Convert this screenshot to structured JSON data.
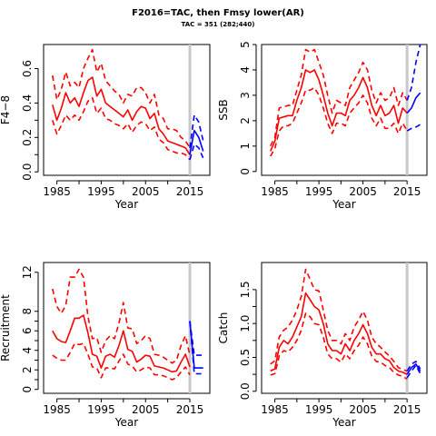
{
  "title": "F2016=TAC, then Fmsy lower(AR)",
  "subtitle": "TAC = 351 (282;440)",
  "colors": {
    "history": "#ff0000",
    "forecast": "#0000ff",
    "divider": "#c8c8c8",
    "axis": "#000000"
  },
  "chart_data": [
    {
      "type": "line",
      "name": "fbar",
      "ylabel": "F̄4−8",
      "xlabel": "Year",
      "xlim": [
        1982,
        2019.5
      ],
      "ylim": [
        -0.02,
        0.74
      ],
      "xticks": [
        1985,
        1995,
        2005,
        2015
      ],
      "yticks": [
        0.0,
        0.2,
        0.4,
        0.6
      ],
      "ytick_labels": [
        "0.0",
        "0.2",
        "0.4",
        "0.6"
      ],
      "divider_x": 2015,
      "history": {
        "x": [
          1984,
          1985,
          1986,
          1987,
          1988,
          1989,
          1990,
          1991,
          1992,
          1993,
          1994,
          1995,
          1996,
          1997,
          1998,
          1999,
          2000,
          2001,
          2002,
          2003,
          2004,
          2005,
          2006,
          2007,
          2008,
          2009,
          2010,
          2011,
          2012,
          2013,
          2014,
          2015
        ],
        "mid": [
          0.39,
          0.3,
          0.37,
          0.46,
          0.4,
          0.43,
          0.38,
          0.46,
          0.53,
          0.55,
          0.44,
          0.48,
          0.4,
          0.38,
          0.36,
          0.34,
          0.32,
          0.36,
          0.3,
          0.35,
          0.38,
          0.37,
          0.31,
          0.34,
          0.25,
          0.22,
          0.18,
          0.17,
          0.16,
          0.15,
          0.14,
          0.1
        ],
        "upper": [
          0.56,
          0.42,
          0.48,
          0.58,
          0.5,
          0.52,
          0.49,
          0.6,
          0.66,
          0.71,
          0.58,
          0.63,
          0.53,
          0.5,
          0.47,
          0.45,
          0.4,
          0.45,
          0.44,
          0.49,
          0.49,
          0.46,
          0.4,
          0.45,
          0.33,
          0.31,
          0.25,
          0.25,
          0.24,
          0.2,
          0.18,
          0.14
        ],
        "lower": [
          0.3,
          0.22,
          0.27,
          0.33,
          0.3,
          0.33,
          0.3,
          0.35,
          0.41,
          0.43,
          0.34,
          0.37,
          0.31,
          0.3,
          0.28,
          0.27,
          0.25,
          0.28,
          0.23,
          0.27,
          0.29,
          0.28,
          0.24,
          0.26,
          0.19,
          0.17,
          0.13,
          0.12,
          0.11,
          0.11,
          0.1,
          0.07
        ]
      },
      "forecast": {
        "x": [
          2015,
          2016,
          2017,
          2018
        ],
        "mid": [
          0.1,
          0.24,
          0.2,
          0.12
        ],
        "upper": [
          0.14,
          0.33,
          0.29,
          0.18
        ],
        "lower": [
          0.07,
          0.16,
          0.14,
          0.08
        ]
      }
    },
    {
      "type": "line",
      "name": "ssb",
      "ylabel": "SSB",
      "xlabel": "Year",
      "xlim": [
        1982,
        2019.5
      ],
      "ylim": [
        -0.15,
        5.0
      ],
      "xticks": [
        1985,
        1995,
        2005,
        2015
      ],
      "yticks": [
        0,
        1,
        2,
        3,
        4,
        5
      ],
      "ytick_labels": [
        "0",
        "1",
        "2",
        "3",
        "4",
        "5"
      ],
      "divider_x": 2015,
      "history": {
        "x": [
          1984,
          1985,
          1986,
          1987,
          1988,
          1989,
          1990,
          1991,
          1992,
          1993,
          1994,
          1995,
          1996,
          1997,
          1998,
          1999,
          2000,
          2001,
          2002,
          2003,
          2004,
          2005,
          2006,
          2007,
          2008,
          2009,
          2010,
          2011,
          2012,
          2013,
          2014,
          2015
        ],
        "mid": [
          0.8,
          1.2,
          2.1,
          2.15,
          2.2,
          2.2,
          2.8,
          3.3,
          4.0,
          3.9,
          4.0,
          3.6,
          3.0,
          2.3,
          1.8,
          2.3,
          2.3,
          2.2,
          2.8,
          3.0,
          3.3,
          3.7,
          3.3,
          2.6,
          2.2,
          2.6,
          2.2,
          2.3,
          2.6,
          1.9,
          2.5,
          2.3
        ],
        "upper": [
          1.0,
          1.35,
          2.5,
          2.55,
          2.6,
          2.6,
          3.2,
          3.8,
          4.8,
          4.7,
          4.8,
          4.3,
          3.8,
          3.0,
          2.3,
          2.8,
          2.7,
          2.6,
          3.3,
          3.6,
          3.9,
          4.3,
          4.0,
          3.2,
          2.7,
          3.1,
          2.8,
          2.9,
          3.3,
          2.6,
          3.1,
          2.8
        ],
        "lower": [
          0.6,
          0.9,
          1.6,
          1.8,
          1.8,
          1.9,
          2.3,
          2.7,
          3.2,
          3.2,
          3.3,
          3.0,
          2.5,
          1.9,
          1.5,
          1.9,
          1.9,
          1.8,
          2.3,
          2.5,
          2.7,
          3.0,
          2.7,
          2.1,
          1.8,
          2.1,
          1.7,
          1.7,
          1.9,
          1.5,
          1.9,
          1.6
        ]
      },
      "forecast": {
        "x": [
          2015,
          2016,
          2017,
          2018
        ],
        "mid": [
          2.3,
          2.5,
          2.9,
          3.1
        ],
        "upper": [
          2.8,
          3.3,
          4.3,
          5.0
        ],
        "lower": [
          1.6,
          1.7,
          1.75,
          1.85
        ]
      }
    },
    {
      "type": "line",
      "name": "recruitment",
      "ylabel": "Recruitment",
      "xlabel": "Year",
      "xlim": [
        1982,
        2019.5
      ],
      "ylim": [
        -0.4,
        13.0
      ],
      "xticks": [
        1985,
        1995,
        2005,
        2015
      ],
      "yticks": [
        0,
        2,
        4,
        6,
        8,
        12
      ],
      "ytick_labels": [
        "0",
        "2",
        "4",
        "6",
        "8",
        "12"
      ],
      "divider_x": 2015,
      "history": {
        "x": [
          1984,
          1985,
          1986,
          1987,
          1988,
          1989,
          1990,
          1991,
          1992,
          1993,
          1994,
          1995,
          1996,
          1997,
          1998,
          1999,
          2000,
          2001,
          2002,
          2003,
          2004,
          2005,
          2006,
          2007,
          2008,
          2009,
          2010,
          2011,
          2012,
          2013,
          2014,
          2015
        ],
        "mid": [
          6.0,
          5.2,
          4.9,
          4.8,
          6.0,
          7.3,
          7.3,
          7.6,
          5.8,
          3.6,
          3.4,
          2.2,
          3.4,
          3.6,
          3.3,
          4.5,
          6.0,
          4.1,
          3.9,
          2.8,
          3.1,
          3.5,
          3.4,
          2.4,
          2.3,
          2.2,
          2.0,
          1.8,
          1.9,
          2.8,
          3.6,
          2.3
        ],
        "upper": [
          10.3,
          8.5,
          7.8,
          8.6,
          11.5,
          11.5,
          12.3,
          11.5,
          7.5,
          5.2,
          5.3,
          3.8,
          5.0,
          5.5,
          5.2,
          6.8,
          8.9,
          6.3,
          6.2,
          4.7,
          5.0,
          5.5,
          5.2,
          3.6,
          3.5,
          3.3,
          3.0,
          2.7,
          3.0,
          4.5,
          5.5,
          3.5
        ],
        "lower": [
          3.5,
          3.2,
          3.0,
          3.0,
          3.8,
          4.7,
          4.6,
          4.7,
          3.6,
          2.3,
          2.2,
          1.2,
          2.2,
          2.2,
          2.1,
          2.9,
          3.6,
          2.6,
          2.4,
          1.8,
          2.0,
          2.3,
          2.2,
          1.5,
          1.5,
          1.4,
          1.2,
          1.0,
          1.2,
          1.8,
          2.3,
          1.5
        ]
      },
      "forecast": {
        "x": [
          2015,
          2016,
          2017,
          2018
        ],
        "mid": [
          7.0,
          2.2,
          2.2,
          2.2
        ],
        "upper": [
          7.0,
          3.5,
          3.5,
          3.5
        ],
        "lower": [
          7.0,
          1.6,
          1.6,
          1.6
        ]
      }
    },
    {
      "type": "line",
      "name": "catch",
      "ylabel": "Catch",
      "xlabel": "Year",
      "xlim": [
        1982,
        2019.5
      ],
      "ylim": [
        -0.03,
        1.9
      ],
      "xticks": [
        1985,
        1995,
        2005,
        2015
      ],
      "yticks": [
        0.0,
        0.5,
        1.0,
        1.5
      ],
      "ytick_labels": [
        "0.0",
        "0.5",
        "1.0",
        "1.5"
      ],
      "divider_x": 2015,
      "history": {
        "x": [
          1984,
          1985,
          1986,
          1987,
          1988,
          1989,
          1990,
          1991,
          1992,
          1993,
          1994,
          1995,
          1996,
          1997,
          1998,
          1999,
          2000,
          2001,
          2002,
          2003,
          2004,
          2005,
          2006,
          2007,
          2008,
          2009,
          2010,
          2011,
          2012,
          2013,
          2014,
          2015
        ],
        "mid": [
          0.3,
          0.33,
          0.65,
          0.75,
          0.7,
          0.8,
          0.95,
          1.1,
          1.45,
          1.35,
          1.25,
          1.2,
          1.0,
          0.7,
          0.6,
          0.6,
          0.55,
          0.7,
          0.6,
          0.75,
          0.85,
          0.98,
          0.85,
          0.65,
          0.55,
          0.55,
          0.48,
          0.45,
          0.35,
          0.3,
          0.28,
          0.25
        ],
        "upper": [
          0.4,
          0.45,
          0.8,
          0.9,
          0.95,
          1.05,
          1.2,
          1.4,
          1.8,
          1.65,
          1.5,
          1.48,
          1.2,
          0.9,
          0.75,
          0.75,
          0.7,
          0.85,
          0.75,
          0.95,
          1.05,
          1.18,
          1.05,
          0.8,
          0.7,
          0.65,
          0.58,
          0.52,
          0.44,
          0.35,
          0.32,
          0.3
        ],
        "lower": [
          0.24,
          0.26,
          0.52,
          0.6,
          0.58,
          0.65,
          0.75,
          0.9,
          1.15,
          1.1,
          1.0,
          0.98,
          0.8,
          0.55,
          0.48,
          0.48,
          0.43,
          0.55,
          0.48,
          0.6,
          0.68,
          0.8,
          0.7,
          0.52,
          0.44,
          0.43,
          0.38,
          0.35,
          0.28,
          0.24,
          0.22,
          0.18
        ]
      },
      "forecast": {
        "x": [
          2015,
          2016,
          2017,
          2018
        ],
        "mid": [
          0.25,
          0.35,
          0.4,
          0.3
        ],
        "upper": [
          0.3,
          0.4,
          0.44,
          0.33
        ],
        "lower": [
          0.2,
          0.3,
          0.38,
          0.26
        ]
      }
    }
  ]
}
